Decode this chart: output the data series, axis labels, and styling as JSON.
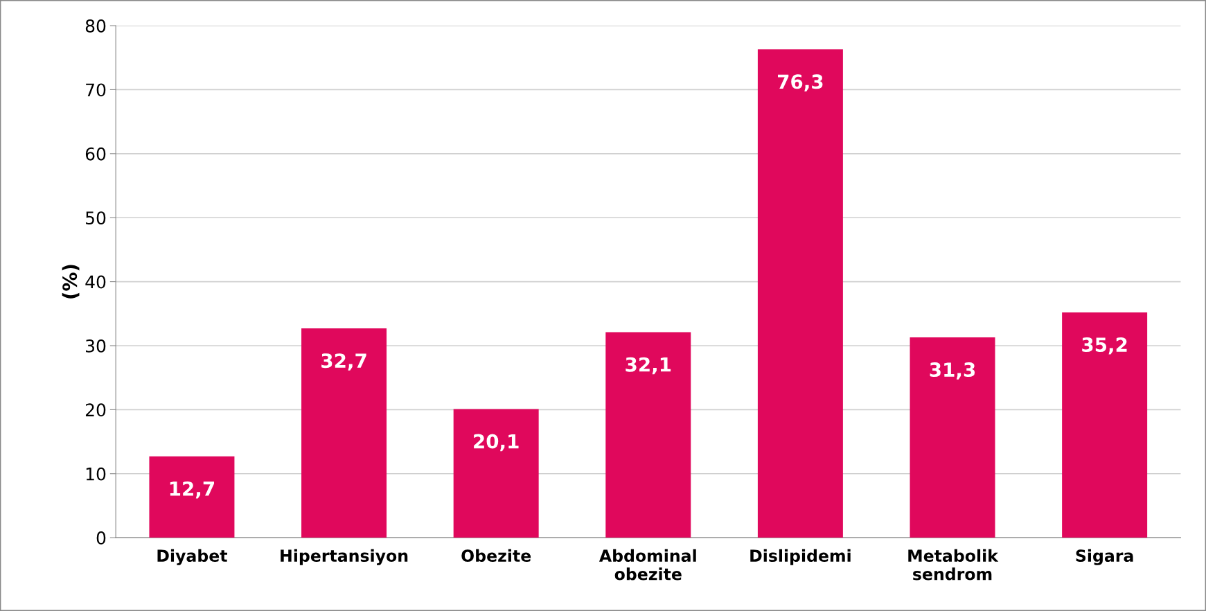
{
  "chart_data": {
    "type": "bar",
    "ylabel": "(%)",
    "categories": [
      "Diyabet",
      "Hipertansiyon",
      "Obezite",
      "Abdominal\nobezite",
      "Dislipidemi",
      "Metabolik\nsendrom",
      "Sigara"
    ],
    "values": [
      12.7,
      32.7,
      20.1,
      32.1,
      76.3,
      31.3,
      35.2
    ],
    "value_labels": [
      "12,7",
      "32,7",
      "20,1",
      "32,1",
      "76,3",
      "31,3",
      "35,2"
    ],
    "color": "#e0085c",
    "ylim": [
      0,
      80
    ],
    "yticks": [
      0,
      10,
      20,
      30,
      40,
      50,
      60,
      70,
      80
    ],
    "grid": "y",
    "legend": false
  }
}
